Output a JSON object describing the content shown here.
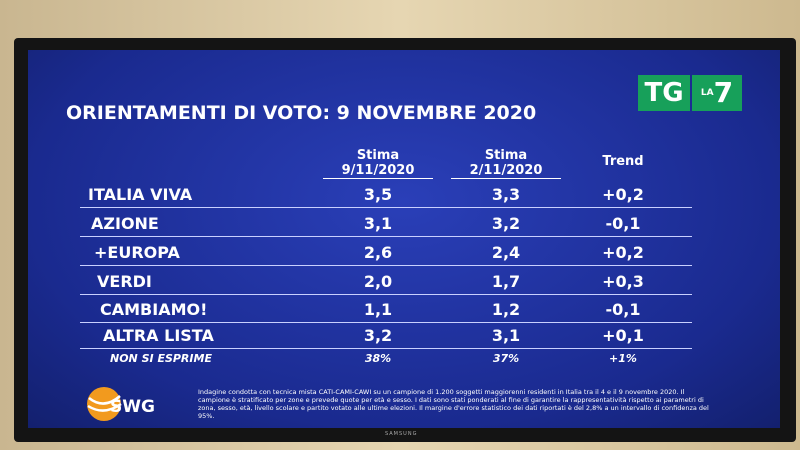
{
  "header": {
    "title": "ORIENTAMENTI DI VOTO: 9 NOVEMBRE 2020",
    "logo": {
      "tg": "TG",
      "la": "LA",
      "seven": "7"
    }
  },
  "table": {
    "columns": [
      {
        "label": "Stima",
        "date": "9/11/2020"
      },
      {
        "label": "Stima",
        "date": "2/11/2020"
      },
      {
        "label": "Trend"
      }
    ],
    "rows": [
      [
        "ITALIA VIVA",
        "3,5",
        "3,3",
        "+0,2"
      ],
      [
        "AZIONE",
        "3,1",
        "3,2",
        "-0,1"
      ],
      [
        "+EUROPA",
        "2,6",
        "2,4",
        "+0,2"
      ],
      [
        "VERDI",
        "2,0",
        "1,7",
        "+0,3"
      ],
      [
        "CAMBIAMO!",
        "1,1",
        "1,2",
        "-0,1"
      ],
      [
        "ALTRA LISTA",
        "3,2",
        "3,1",
        "+0,1"
      ]
    ],
    "footer_row": [
      "NON SI ESPRIME",
      "38%",
      "37%",
      "+1%"
    ]
  },
  "footer": {
    "brand": "SWG",
    "note": "Indagine condotta con tecnica mista CATI-CAMI-CAWI su un campione di 1.200 soggetti maggiorenni residenti in Italia tra il 4 e il 9 novembre 2020. Il campione è stratificato per zone e prevede quote per età e sesso. I dati sono stati ponderati al fine di garantire la rappresentatività rispetto ai parametri di zona, sesso, età, livello scolare e partito votato alle ultime elezioni. Il margine d'errore statistico dei dati riportati è del 2,8% a un intervallo di confidenza del 95%."
  },
  "tv": {
    "brand": "SAMSUNG"
  }
}
